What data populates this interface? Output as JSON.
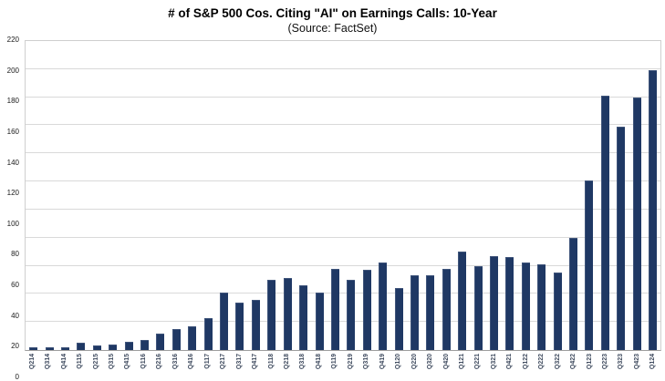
{
  "header": {
    "title": "# of S&P 500 Cos. Citing \"AI\" on Earnings Calls: 10-Year",
    "subtitle": "(Source: FactSet)"
  },
  "chart_data": {
    "type": "bar",
    "title": "# of S&P 500 Cos. Citing \"AI\" on Earnings Calls: 10-Year",
    "subtitle": "(Source: FactSet)",
    "categories": [
      "Q214",
      "Q314",
      "Q414",
      "Q115",
      "Q215",
      "Q315",
      "Q415",
      "Q116",
      "Q216",
      "Q316",
      "Q416",
      "Q117",
      "Q217",
      "Q317",
      "Q417",
      "Q118",
      "Q218",
      "Q318",
      "Q418",
      "Q119",
      "Q219",
      "Q319",
      "Q419",
      "Q120",
      "Q220",
      "Q320",
      "Q420",
      "Q121",
      "Q221",
      "Q321",
      "Q421",
      "Q122",
      "Q222",
      "Q322",
      "Q422",
      "Q123",
      "Q223",
      "Q323",
      "Q423",
      "Q124"
    ],
    "values": [
      2,
      2,
      2,
      5,
      3,
      4,
      6,
      7,
      12,
      15,
      17,
      23,
      41,
      34,
      36,
      50,
      51,
      46,
      41,
      58,
      50,
      57,
      62,
      44,
      53,
      53,
      58,
      70,
      60,
      67,
      66,
      62,
      61,
      55,
      80,
      121,
      181,
      159,
      180,
      199
    ],
    "xlabel": "",
    "ylabel": "",
    "ylim": [
      0,
      220
    ],
    "ytick_interval": 20,
    "yticks": [
      0,
      20,
      40,
      60,
      80,
      100,
      120,
      140,
      160,
      180,
      200,
      220
    ],
    "grid": true,
    "legend": false,
    "bar_color": "#1f3864",
    "gridline_color": "#d9d9d9",
    "axis_color": "#9e9e9e"
  }
}
